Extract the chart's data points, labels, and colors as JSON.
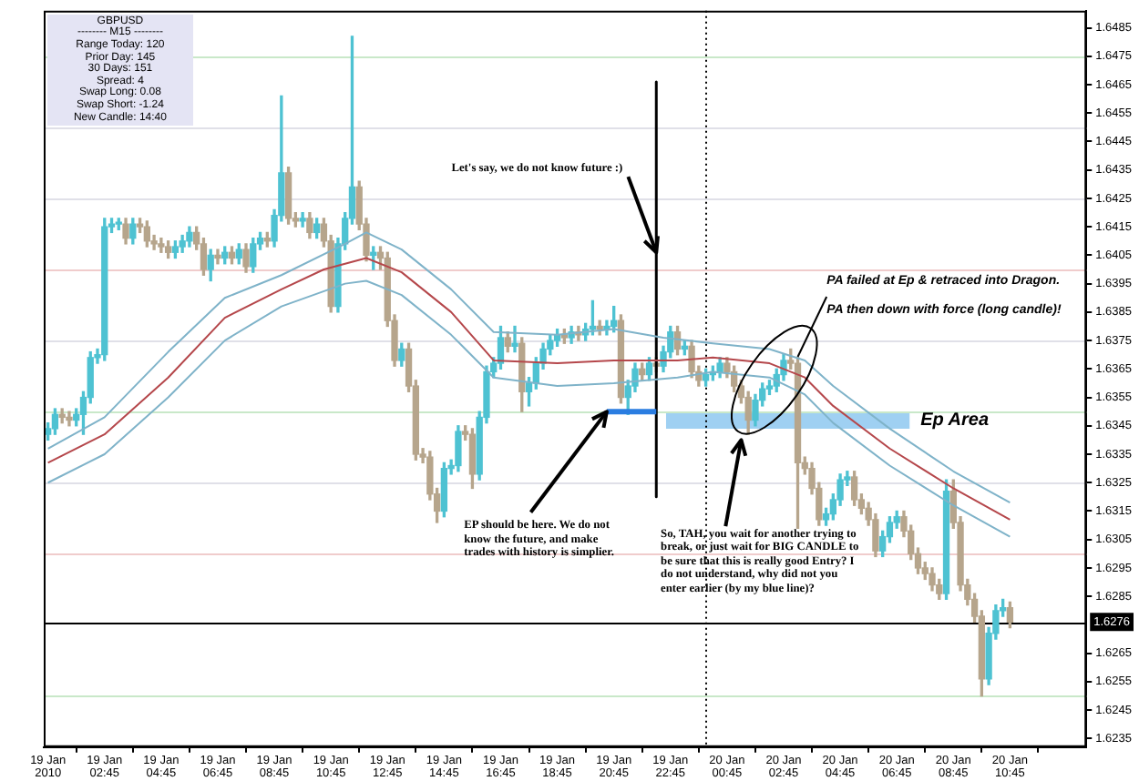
{
  "chart_data": {
    "type": "candlestick",
    "series": [
      {
        "type": "candlestick",
        "x": [
          "2010-01-19T00:45",
          "2010-01-19T01:00",
          "2010-01-19T01:15",
          "2010-01-19T01:30",
          "2010-01-19T01:45",
          "2010-01-19T02:00",
          "2010-01-19T02:15",
          "2010-01-19T02:30",
          "2010-01-19T02:45",
          "2010-01-19T03:00",
          "2010-01-19T03:15",
          "2010-01-19T03:30",
          "2010-01-19T03:45",
          "2010-01-19T04:00",
          "2010-01-19T04:15",
          "2010-01-19T04:30",
          "2010-01-19T04:45",
          "2010-01-19T05:00",
          "2010-01-19T05:15",
          "2010-01-19T05:30",
          "2010-01-19T05:45",
          "2010-01-19T06:00",
          "2010-01-19T06:15",
          "2010-01-19T06:30",
          "2010-01-19T06:45",
          "2010-01-19T07:00",
          "2010-01-19T07:15",
          "2010-01-19T07:30",
          "2010-01-19T07:45",
          "2010-01-19T08:00",
          "2010-01-19T08:15",
          "2010-01-19T08:30",
          "2010-01-19T08:45",
          "2010-01-19T09:00",
          "2010-01-19T09:15",
          "2010-01-19T09:30",
          "2010-01-19T09:45",
          "2010-01-19T10:00",
          "2010-01-19T10:15",
          "2010-01-19T10:30",
          "2010-01-19T10:45",
          "2010-01-19T11:00",
          "2010-01-19T11:15",
          "2010-01-19T11:30",
          "2010-01-19T11:45",
          "2010-01-19T12:00",
          "2010-01-19T12:15",
          "2010-01-19T12:30",
          "2010-01-19T12:45",
          "2010-01-19T13:00",
          "2010-01-19T13:15",
          "2010-01-19T13:30",
          "2010-01-19T13:45",
          "2010-01-19T14:00",
          "2010-01-19T14:15",
          "2010-01-19T14:30",
          "2010-01-19T14:45",
          "2010-01-19T15:00",
          "2010-01-19T15:15",
          "2010-01-19T15:30",
          "2010-01-19T15:45",
          "2010-01-19T16:00",
          "2010-01-19T16:15",
          "2010-01-19T16:30",
          "2010-01-19T16:45",
          "2010-01-19T17:00",
          "2010-01-19T17:15",
          "2010-01-19T17:30",
          "2010-01-19T17:45",
          "2010-01-19T18:00",
          "2010-01-19T18:15",
          "2010-01-19T18:30",
          "2010-01-19T18:45",
          "2010-01-19T19:00",
          "2010-01-19T19:15",
          "2010-01-19T19:30",
          "2010-01-19T19:45",
          "2010-01-19T20:00",
          "2010-01-19T20:15",
          "2010-01-19T20:30",
          "2010-01-19T20:45",
          "2010-01-19T21:00",
          "2010-01-19T21:15",
          "2010-01-19T21:30",
          "2010-01-19T21:45",
          "2010-01-19T22:00",
          "2010-01-19T22:15",
          "2010-01-19T22:30",
          "2010-01-19T22:45",
          "2010-01-19T23:00",
          "2010-01-19T23:15",
          "2010-01-19T23:30",
          "2010-01-19T23:45",
          "2010-01-20T00:00",
          "2010-01-20T00:15",
          "2010-01-20T00:30",
          "2010-01-20T00:45",
          "2010-01-20T01:00",
          "2010-01-20T01:15",
          "2010-01-20T01:30",
          "2010-01-20T01:45",
          "2010-01-20T02:00",
          "2010-01-20T02:15",
          "2010-01-20T02:30",
          "2010-01-20T02:45",
          "2010-01-20T03:00",
          "2010-01-20T03:15",
          "2010-01-20T03:30",
          "2010-01-20T03:45",
          "2010-01-20T04:00",
          "2010-01-20T04:15",
          "2010-01-20T04:30",
          "2010-01-20T04:45",
          "2010-01-20T05:00",
          "2010-01-20T05:15",
          "2010-01-20T05:30",
          "2010-01-20T05:45",
          "2010-01-20T06:00",
          "2010-01-20T06:15",
          "2010-01-20T06:30",
          "2010-01-20T06:45",
          "2010-01-20T07:00",
          "2010-01-20T07:15",
          "2010-01-20T07:30",
          "2010-01-20T07:45",
          "2010-01-20T08:00",
          "2010-01-20T08:15",
          "2010-01-20T08:30",
          "2010-01-20T08:45",
          "2010-01-20T09:00",
          "2010-01-20T09:15",
          "2010-01-20T09:30",
          "2010-01-20T09:45",
          "2010-01-20T10:00",
          "2010-01-20T10:15",
          "2010-01-20T10:30",
          "2010-01-20T10:45"
        ],
        "ohlc": [
          [
            1.6342,
            1.6346,
            1.634,
            1.6344
          ],
          [
            1.6344,
            1.6351,
            1.6342,
            1.6349
          ],
          [
            1.6349,
            1.6351,
            1.6346,
            1.6348
          ],
          [
            1.6348,
            1.635,
            1.6345,
            1.6347
          ],
          [
            1.6347,
            1.6351,
            1.6345,
            1.6349
          ],
          [
            1.6349,
            1.6357,
            1.6342,
            1.6355
          ],
          [
            1.6355,
            1.6371,
            1.6353,
            1.6369
          ],
          [
            1.6369,
            1.6372,
            1.6367,
            1.637
          ],
          [
            1.637,
            1.6418,
            1.6368,
            1.6415
          ],
          [
            1.6415,
            1.6418,
            1.6413,
            1.6416
          ],
          [
            1.6416,
            1.6418,
            1.6414,
            1.6416
          ],
          [
            1.6416,
            1.6418,
            1.6409,
            1.6411
          ],
          [
            1.6411,
            1.6418,
            1.6409,
            1.6416
          ],
          [
            1.6416,
            1.6418,
            1.6413,
            1.6415
          ],
          [
            1.6415,
            1.6417,
            1.6408,
            1.641
          ],
          [
            1.641,
            1.6412,
            1.6407,
            1.6409
          ],
          [
            1.6409,
            1.6411,
            1.6406,
            1.6408
          ],
          [
            1.6408,
            1.641,
            1.6404,
            1.6406
          ],
          [
            1.6406,
            1.641,
            1.6404,
            1.6408
          ],
          [
            1.6408,
            1.6412,
            1.6406,
            1.641
          ],
          [
            1.641,
            1.6415,
            1.6408,
            1.6413
          ],
          [
            1.6413,
            1.6415,
            1.6407,
            1.6409
          ],
          [
            1.6409,
            1.6411,
            1.6398,
            1.64
          ],
          [
            1.64,
            1.6407,
            1.6396,
            1.6405
          ],
          [
            1.6405,
            1.6407,
            1.6402,
            1.6404
          ],
          [
            1.6404,
            1.6408,
            1.6402,
            1.6406
          ],
          [
            1.6406,
            1.6408,
            1.6402,
            1.6404
          ],
          [
            1.6404,
            1.6409,
            1.6402,
            1.6407
          ],
          [
            1.6407,
            1.6409,
            1.6399,
            1.6401
          ],
          [
            1.6401,
            1.6411,
            1.6399,
            1.6409
          ],
          [
            1.6409,
            1.6413,
            1.6407,
            1.6411
          ],
          [
            1.6411,
            1.6413,
            1.6408,
            1.641
          ],
          [
            1.641,
            1.6421,
            1.6408,
            1.6419
          ],
          [
            1.6419,
            1.6461,
            1.6417,
            1.6434
          ],
          [
            1.6434,
            1.6436,
            1.6416,
            1.6418
          ],
          [
            1.6418,
            1.642,
            1.6415,
            1.6417
          ],
          [
            1.6417,
            1.642,
            1.6415,
            1.6418
          ],
          [
            1.6418,
            1.642,
            1.6411,
            1.6413
          ],
          [
            1.6413,
            1.6418,
            1.6411,
            1.6416
          ],
          [
            1.6416,
            1.6418,
            1.6408,
            1.641
          ],
          [
            1.641,
            1.6412,
            1.6385,
            1.6387
          ],
          [
            1.6387,
            1.6411,
            1.6385,
            1.6409
          ],
          [
            1.6409,
            1.642,
            1.6407,
            1.6418
          ],
          [
            1.6418,
            1.6482,
            1.6416,
            1.6429
          ],
          [
            1.6429,
            1.6431,
            1.6414,
            1.6416
          ],
          [
            1.6416,
            1.6418,
            1.6403,
            1.6405
          ],
          [
            1.6405,
            1.6408,
            1.64,
            1.6406
          ],
          [
            1.6406,
            1.6408,
            1.64,
            1.6404
          ],
          [
            1.6404,
            1.6406,
            1.638,
            1.6382
          ],
          [
            1.6382,
            1.6384,
            1.6366,
            1.6368
          ],
          [
            1.6368,
            1.6374,
            1.6366,
            1.6372
          ],
          [
            1.6372,
            1.6374,
            1.6357,
            1.6359
          ],
          [
            1.6359,
            1.6361,
            1.6333,
            1.6335
          ],
          [
            1.6335,
            1.6337,
            1.6332,
            1.6334
          ],
          [
            1.6334,
            1.6336,
            1.6319,
            1.6321
          ],
          [
            1.6321,
            1.6323,
            1.6311,
            1.6315
          ],
          [
            1.6315,
            1.6332,
            1.6313,
            1.633
          ],
          [
            1.633,
            1.6333,
            1.6328,
            1.6331
          ],
          [
            1.6331,
            1.6345,
            1.6329,
            1.6343
          ],
          [
            1.6343,
            1.6345,
            1.634,
            1.6342
          ],
          [
            1.6342,
            1.6344,
            1.6323,
            1.6328
          ],
          [
            1.6328,
            1.635,
            1.6326,
            1.6348
          ],
          [
            1.6348,
            1.6366,
            1.6346,
            1.6364
          ],
          [
            1.6364,
            1.6369,
            1.6362,
            1.6367
          ],
          [
            1.6367,
            1.638,
            1.6365,
            1.6376
          ],
          [
            1.6376,
            1.6378,
            1.6371,
            1.6373
          ],
          [
            1.6373,
            1.638,
            1.6371,
            1.6374
          ],
          [
            1.6374,
            1.6376,
            1.635,
            1.6357
          ],
          [
            1.6357,
            1.6362,
            1.6352,
            1.636
          ],
          [
            1.636,
            1.6369,
            1.6358,
            1.6367
          ],
          [
            1.6367,
            1.6374,
            1.6365,
            1.6372
          ],
          [
            1.6372,
            1.6377,
            1.637,
            1.6375
          ],
          [
            1.6375,
            1.6379,
            1.6373,
            1.6377
          ],
          [
            1.6377,
            1.6379,
            1.6374,
            1.6376
          ],
          [
            1.6376,
            1.638,
            1.6374,
            1.6378
          ],
          [
            1.6378,
            1.638,
            1.6375,
            1.6377
          ],
          [
            1.6377,
            1.6381,
            1.6375,
            1.6379
          ],
          [
            1.6379,
            1.6389,
            1.6377,
            1.638
          ],
          [
            1.638,
            1.6382,
            1.6377,
            1.6379
          ],
          [
            1.6379,
            1.6382,
            1.6377,
            1.638
          ],
          [
            1.638,
            1.6387,
            1.6378,
            1.6382
          ],
          [
            1.6382,
            1.6384,
            1.6353,
            1.6355
          ],
          [
            1.6355,
            1.6361,
            1.6349,
            1.6359
          ],
          [
            1.6359,
            1.6367,
            1.6357,
            1.6365
          ],
          [
            1.6365,
            1.6367,
            1.6361,
            1.6363
          ],
          [
            1.6363,
            1.6369,
            1.6361,
            1.6367
          ],
          [
            1.6367,
            1.6369,
            1.6364,
            1.6366
          ],
          [
            1.6366,
            1.6373,
            1.6364,
            1.6371
          ],
          [
            1.6371,
            1.638,
            1.6369,
            1.6378
          ],
          [
            1.6378,
            1.638,
            1.637,
            1.6372
          ],
          [
            1.6372,
            1.6375,
            1.637,
            1.6373
          ],
          [
            1.6373,
            1.6375,
            1.6362,
            1.6364
          ],
          [
            1.6364,
            1.6366,
            1.6359,
            1.6361
          ],
          [
            1.6361,
            1.6365,
            1.6359,
            1.6363
          ],
          [
            1.6363,
            1.6366,
            1.6361,
            1.6364
          ],
          [
            1.6364,
            1.6369,
            1.6362,
            1.6367
          ],
          [
            1.6367,
            1.6369,
            1.6362,
            1.6364
          ],
          [
            1.6364,
            1.6366,
            1.6357,
            1.6359
          ],
          [
            1.6359,
            1.6361,
            1.6353,
            1.6355
          ],
          [
            1.6355,
            1.6357,
            1.6342,
            1.6347
          ],
          [
            1.6347,
            1.6356,
            1.6345,
            1.6354
          ],
          [
            1.6354,
            1.636,
            1.6352,
            1.6358
          ],
          [
            1.6358,
            1.6361,
            1.6356,
            1.6359
          ],
          [
            1.6359,
            1.6365,
            1.6357,
            1.6363
          ],
          [
            1.6363,
            1.637,
            1.6361,
            1.6368
          ],
          [
            1.6368,
            1.6372,
            1.6365,
            1.6367
          ],
          [
            1.6367,
            1.6369,
            1.6309,
            1.6332
          ],
          [
            1.6332,
            1.6334,
            1.6328,
            1.633
          ],
          [
            1.633,
            1.6332,
            1.6321,
            1.6323
          ],
          [
            1.6323,
            1.6325,
            1.631,
            1.6312
          ],
          [
            1.6312,
            1.6316,
            1.631,
            1.6314
          ],
          [
            1.6314,
            1.6321,
            1.6312,
            1.6319
          ],
          [
            1.6319,
            1.6328,
            1.6317,
            1.6326
          ],
          [
            1.6326,
            1.6329,
            1.6324,
            1.6327
          ],
          [
            1.6327,
            1.6329,
            1.6317,
            1.6319
          ],
          [
            1.6319,
            1.6321,
            1.6314,
            1.6316
          ],
          [
            1.6316,
            1.6318,
            1.631,
            1.6312
          ],
          [
            1.6312,
            1.6314,
            1.6299,
            1.6301
          ],
          [
            1.6301,
            1.6308,
            1.6299,
            1.6306
          ],
          [
            1.6306,
            1.6313,
            1.6304,
            1.6311
          ],
          [
            1.6311,
            1.6315,
            1.6309,
            1.6313
          ],
          [
            1.6313,
            1.6315,
            1.6306,
            1.6308
          ],
          [
            1.6308,
            1.631,
            1.6298,
            1.63
          ],
          [
            1.63,
            1.6302,
            1.6293,
            1.6295
          ],
          [
            1.6295,
            1.6297,
            1.6291,
            1.6293
          ],
          [
            1.6293,
            1.6295,
            1.6287,
            1.6289
          ],
          [
            1.6289,
            1.6291,
            1.6284,
            1.6286
          ],
          [
            1.6286,
            1.6326,
            1.6284,
            1.6322
          ],
          [
            1.6322,
            1.6326,
            1.6309,
            1.6311
          ],
          [
            1.6311,
            1.6313,
            1.6287,
            1.6289
          ],
          [
            1.6289,
            1.6291,
            1.6282,
            1.6284
          ],
          [
            1.6284,
            1.6286,
            1.6276,
            1.6278
          ],
          [
            1.6278,
            1.628,
            1.625,
            1.6256
          ],
          [
            1.6256,
            1.6274,
            1.6254,
            1.6272
          ],
          [
            1.6272,
            1.6282,
            1.627,
            1.628
          ],
          [
            1.628,
            1.6284,
            1.6278,
            1.6281
          ],
          [
            1.6281,
            1.6283,
            1.6274,
            1.6276
          ]
        ],
        "colors": [
          "#4ec2d2",
          "#4ec2d2",
          "#b6a58c",
          "#b6a58c",
          "#4ec2d2",
          "#4ec2d2",
          "#4ec2d2",
          "#4ec2d2",
          "#4ec2d2",
          "#4ec2d2",
          "#4ec2d2",
          "#b6a58c",
          "#4ec2d2",
          "#b6a58c",
          "#b6a58c",
          "#b6a58c",
          "#b6a58c",
          "#b6a58c",
          "#4ec2d2",
          "#4ec2d2",
          "#4ec2d2",
          "#b6a58c",
          "#b6a58c",
          "#4ec2d2",
          "#b6a58c",
          "#4ec2d2",
          "#b6a58c",
          "#4ec2d2",
          "#b6a58c",
          "#4ec2d2",
          "#4ec2d2",
          "#b6a58c",
          "#4ec2d2",
          "#4ec2d2",
          "#b6a58c",
          "#b6a58c",
          "#4ec2d2",
          "#b6a58c",
          "#4ec2d2",
          "#b6a58c",
          "#b6a58c",
          "#4ec2d2",
          "#4ec2d2",
          "#4ec2d2",
          "#b6a58c",
          "#b6a58c",
          "#4ec2d2",
          "#b6a58c",
          "#b6a58c",
          "#b6a58c",
          "#4ec2d2",
          "#b6a58c",
          "#b6a58c",
          "#b6a58c",
          "#b6a58c",
          "#b6a58c",
          "#4ec2d2",
          "#4ec2d2",
          "#4ec2d2",
          "#b6a58c",
          "#b6a58c",
          "#4ec2d2",
          "#4ec2d2",
          "#4ec2d2",
          "#4ec2d2",
          "#b6a58c",
          "#4ec2d2",
          "#b6a58c",
          "#4ec2d2",
          "#4ec2d2",
          "#4ec2d2",
          "#4ec2d2",
          "#4ec2d2",
          "#b6a58c",
          "#4ec2d2",
          "#b6a58c",
          "#4ec2d2",
          "#4ec2d2",
          "#b6a58c",
          "#4ec2d2",
          "#4ec2d2",
          "#b6a58c",
          "#4ec2d2",
          "#4ec2d2",
          "#b6a58c",
          "#4ec2d2",
          "#b6a58c",
          "#4ec2d2",
          "#4ec2d2",
          "#b6a58c",
          "#4ec2d2",
          "#b6a58c",
          "#b6a58c",
          "#4ec2d2",
          "#4ec2d2",
          "#4ec2d2",
          "#b6a58c",
          "#b6a58c",
          "#b6a58c",
          "#b6a58c",
          "#4ec2d2",
          "#4ec2d2",
          "#4ec2d2",
          "#4ec2d2",
          "#4ec2d2",
          "#b6a58c",
          "#b6a58c",
          "#b6a58c",
          "#b6a58c",
          "#b6a58c",
          "#4ec2d2",
          "#4ec2d2",
          "#4ec2d2",
          "#4ec2d2",
          "#b6a58c",
          "#b6a58c",
          "#b6a58c",
          "#b6a58c",
          "#4ec2d2",
          "#4ec2d2",
          "#4ec2d2",
          "#b6a58c",
          "#b6a58c",
          "#b6a58c",
          "#b6a58c",
          "#b6a58c",
          "#b6a58c",
          "#4ec2d2",
          "#b6a58c",
          "#b6a58c",
          "#b6a58c",
          "#b6a58c",
          "#b6a58c",
          "#4ec2d2",
          "#4ec2d2",
          "#4ec2d2",
          "#b6a58c"
        ]
      },
      {
        "type": "line",
        "color": "#7fb3c9",
        "x": [
          "2010-01-19T00:45",
          "2010-01-19T02:45",
          "2010-01-19T05:00",
          "2010-01-19T07:00",
          "2010-01-19T09:00",
          "2010-01-19T11:15",
          "2010-01-19T12:00",
          "2010-01-19T13:15",
          "2010-01-19T15:00",
          "2010-01-19T16:30",
          "2010-01-19T18:45",
          "2010-01-19T20:45",
          "2010-01-19T22:30",
          "2010-01-20T00:15",
          "2010-01-20T02:15",
          "2010-01-20T03:30",
          "2010-01-20T04:30",
          "2010-01-20T06:30",
          "2010-01-20T08:45",
          "2010-01-20T10:45"
        ],
        "values": [
          1.6337,
          1.6348,
          1.6371,
          1.639,
          1.6398,
          1.6409,
          1.6413,
          1.6407,
          1.6393,
          1.6378,
          1.6377,
          1.6379,
          1.6376,
          1.6374,
          1.6372,
          1.6368,
          1.6359,
          1.6344,
          1.6329,
          1.6318
        ]
      },
      {
        "type": "line",
        "color": "#b5474b",
        "x": [
          "2010-01-19T00:45",
          "2010-01-19T02:45",
          "2010-01-19T05:00",
          "2010-01-19T07:00",
          "2010-01-19T09:00",
          "2010-01-19T10:30",
          "2010-01-19T12:00",
          "2010-01-19T13:15",
          "2010-01-19T15:00",
          "2010-01-19T16:30",
          "2010-01-19T18:45",
          "2010-01-19T20:45",
          "2010-01-19T23:00",
          "2010-01-20T00:15",
          "2010-01-20T02:15",
          "2010-01-20T03:30",
          "2010-01-20T04:30",
          "2010-01-20T06:30",
          "2010-01-20T08:45",
          "2010-01-20T10:45"
        ],
        "values": [
          1.6332,
          1.6342,
          1.6362,
          1.6383,
          1.6393,
          1.64,
          1.6404,
          1.6399,
          1.6385,
          1.6368,
          1.6367,
          1.6368,
          1.6368,
          1.6369,
          1.6367,
          1.6362,
          1.6352,
          1.6337,
          1.6323,
          1.6312
        ]
      },
      {
        "type": "line",
        "color": "#7fb3c9",
        "x": [
          "2010-01-19T00:45",
          "2010-01-19T02:45",
          "2010-01-19T05:00",
          "2010-01-19T07:00",
          "2010-01-19T09:00",
          "2010-01-19T11:15",
          "2010-01-19T12:00",
          "2010-01-19T13:15",
          "2010-01-19T15:00",
          "2010-01-19T16:30",
          "2010-01-19T18:45",
          "2010-01-19T20:45",
          "2010-01-19T23:00",
          "2010-01-20T00:15",
          "2010-01-20T02:15",
          "2010-01-20T03:30",
          "2010-01-20T04:30",
          "2010-01-20T06:30",
          "2010-01-20T08:45",
          "2010-01-20T10:45"
        ],
        "values": [
          1.6325,
          1.6335,
          1.6355,
          1.6375,
          1.6387,
          1.6395,
          1.6396,
          1.6391,
          1.6377,
          1.6362,
          1.6359,
          1.636,
          1.6362,
          1.6364,
          1.6362,
          1.6356,
          1.6346,
          1.6331,
          1.6317,
          1.6306
        ]
      },
      {
        "type": "line",
        "color": "#2a7de1",
        "x": [
          "2010-01-19T20:30",
          "2010-01-19T22:15"
        ],
        "values": [
          1.635,
          1.635
        ]
      },
      {
        "type": "line",
        "color": "#000000",
        "x": [
          "2010-01-19T22:15",
          "2010-01-19T22:15"
        ],
        "values": [
          1.6466,
          1.632
        ]
      }
    ],
    "marker": "none",
    "xlim": [
      "2010-01-19T00:36",
      "2010-01-20T13:27"
    ],
    "xticks": [
      {
        "value": "2010-01-19T00:45",
        "label": "19 Jan 2010"
      },
      {
        "value": "2010-01-19T02:45",
        "label": "19 Jan 02:45"
      },
      {
        "value": "2010-01-19T04:45",
        "label": "19 Jan 04:45"
      },
      {
        "value": "2010-01-19T06:45",
        "label": "19 Jan 06:45"
      },
      {
        "value": "2010-01-19T08:45",
        "label": "19 Jan 08:45"
      },
      {
        "value": "2010-01-19T10:45",
        "label": "19 Jan 10:45"
      },
      {
        "value": "2010-01-19T12:45",
        "label": "19 Jan 12:45"
      },
      {
        "value": "2010-01-19T14:45",
        "label": "19 Jan 14:45"
      },
      {
        "value": "2010-01-19T16:45",
        "label": "19 Jan 16:45"
      },
      {
        "value": "2010-01-19T18:45",
        "label": "19 Jan 18:45"
      },
      {
        "value": "2010-01-19T20:45",
        "label": "19 Jan 20:45"
      },
      {
        "value": "2010-01-19T22:45",
        "label": "19 Jan 22:45"
      },
      {
        "value": "2010-01-20T00:45",
        "label": "20 Jan 00:45"
      },
      {
        "value": "2010-01-20T02:45",
        "label": "20 Jan 02:45"
      },
      {
        "value": "2010-01-20T04:45",
        "label": "20 Jan 04:45"
      },
      {
        "value": "2010-01-20T06:45",
        "label": "20 Jan 06:45"
      },
      {
        "value": "2010-01-20T08:45",
        "label": "20 Jan 08:45"
      },
      {
        "value": "2010-01-20T10:45",
        "label": "20 Jan 10:45"
      }
    ],
    "ylim": [
      1.6232,
      1.6491
    ],
    "yticks": [
      1.6235,
      1.6245,
      1.6255,
      1.6265,
      1.6285,
      1.6295,
      1.6305,
      1.6315,
      1.6325,
      1.6335,
      1.6345,
      1.6355,
      1.6365,
      1.6375,
      1.6385,
      1.6395,
      1.6405,
      1.6415,
      1.6425,
      1.6435,
      1.6445,
      1.6455,
      1.6465,
      1.6475,
      1.6485
    ],
    "grid": false,
    "legend": false,
    "ref_lines": [
      {
        "axis": "y",
        "value": 1.6475,
        "color": "#c9e8c9"
      },
      {
        "axis": "y",
        "value": 1.645,
        "color": "#e0e0e8"
      },
      {
        "axis": "y",
        "value": 1.6425,
        "color": "#e0e0e8"
      },
      {
        "axis": "y",
        "value": 1.64,
        "color": "#f0cccc"
      },
      {
        "axis": "y",
        "value": 1.6375,
        "color": "#e0e0e8"
      },
      {
        "axis": "y",
        "value": 1.635,
        "color": "#c9e8c9"
      },
      {
        "axis": "y",
        "value": 1.6325,
        "color": "#e0e0e8"
      },
      {
        "axis": "y",
        "value": 1.63,
        "color": "#f0cccc"
      },
      {
        "axis": "y",
        "value": 1.625,
        "color": "#c9e8c9"
      },
      {
        "axis": "y",
        "value": 1.6276,
        "color": "#000000",
        "label": "1.6276"
      },
      {
        "axis": "x",
        "value": "2010-01-20T00:00",
        "color": "#000000",
        "line_style": "dotted"
      }
    ],
    "bands": [
      {
        "axis": "y",
        "from": 1.6344,
        "to": 1.635,
        "label": "Ep Area",
        "color": "#9fd0f2"
      }
    ],
    "annotations": [
      "GBPUSD",
      "-------- M15 --------",
      "Range Today: 120",
      "Prior Day: 145",
      "30 Days: 151",
      "Spread: 4",
      "Swap Long: 0.08",
      "Swap Short: -1.24",
      "New Candle: 14:40",
      {
        "text": "Let's say, we do not know future :)",
        "x": "2010-01-19T22:15",
        "y": 1.6406
      },
      {
        "text": "EP should be here. We do not know the future, and make trades with history is simplier.",
        "x": "2010-01-19T20:30",
        "y": 1.635
      },
      {
        "text": "So, TAH, you wait for another trying to break, or just wait for BIG CANDLE to be sure that this is really good Entry?  I do not understand, why did not you enter earlier (by my blue line)?",
        "x": "2010-01-20T01:15",
        "y": 1.634
      },
      "PA failed at Ep & retraced into Dragon.",
      "PA then down with force (long candle)!"
    ]
  }
}
